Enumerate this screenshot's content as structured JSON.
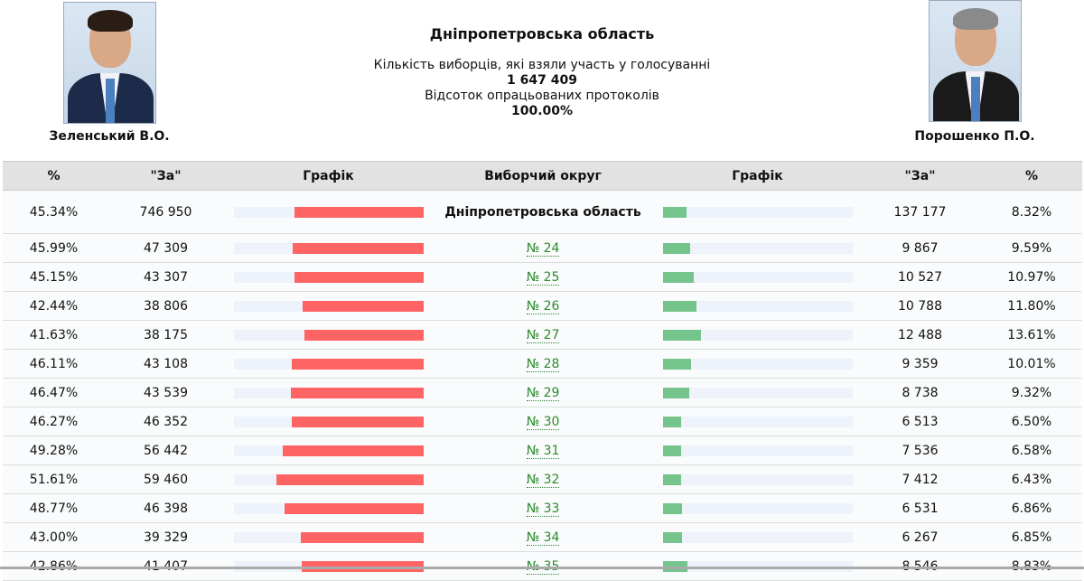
{
  "header": {
    "title": "Дніпропетровська область",
    "turnout_label": "Кількість виборців, які взяли участь у голосуванні",
    "turnout_value": "1 647 409",
    "protocols_label": "Відсоток опрацьованих протоколів",
    "protocols_value": "100.00%"
  },
  "candidates": {
    "left": {
      "name": "Зеленський В.О.",
      "color": "#fe6464"
    },
    "right": {
      "name": "Порошенко П.О.",
      "color": "#74c48c"
    }
  },
  "table": {
    "columns": [
      "%",
      "\"За\"",
      "Графік",
      "Виборчий округ",
      "Графік",
      "\"За\"",
      "%"
    ],
    "bar_scale_max_percent": 66.7,
    "rows": [
      {
        "l_pct": "45.34%",
        "l_votes": "746 950",
        "district": "Дніпропетровська область",
        "r_votes": "137 177",
        "r_pct": "8.32%",
        "l": 45.34,
        "r": 8.32,
        "total": true
      },
      {
        "l_pct": "45.99%",
        "l_votes": "47 309",
        "district": "№ 24",
        "r_votes": "9 867",
        "r_pct": "9.59%",
        "l": 45.99,
        "r": 9.59
      },
      {
        "l_pct": "45.15%",
        "l_votes": "43 307",
        "district": "№ 25",
        "r_votes": "10 527",
        "r_pct": "10.97%",
        "l": 45.15,
        "r": 10.97
      },
      {
        "l_pct": "42.44%",
        "l_votes": "38 806",
        "district": "№ 26",
        "r_votes": "10 788",
        "r_pct": "11.80%",
        "l": 42.44,
        "r": 11.8
      },
      {
        "l_pct": "41.63%",
        "l_votes": "38 175",
        "district": "№ 27",
        "r_votes": "12 488",
        "r_pct": "13.61%",
        "l": 41.63,
        "r": 13.61
      },
      {
        "l_pct": "46.11%",
        "l_votes": "43 108",
        "district": "№ 28",
        "r_votes": "9 359",
        "r_pct": "10.01%",
        "l": 46.11,
        "r": 10.01
      },
      {
        "l_pct": "46.47%",
        "l_votes": "43 539",
        "district": "№ 29",
        "r_votes": "8 738",
        "r_pct": "9.32%",
        "l": 46.47,
        "r": 9.32
      },
      {
        "l_pct": "46.27%",
        "l_votes": "46 352",
        "district": "№ 30",
        "r_votes": "6 513",
        "r_pct": "6.50%",
        "l": 46.27,
        "r": 6.5
      },
      {
        "l_pct": "49.28%",
        "l_votes": "56 442",
        "district": "№ 31",
        "r_votes": "7 536",
        "r_pct": "6.58%",
        "l": 49.28,
        "r": 6.58
      },
      {
        "l_pct": "51.61%",
        "l_votes": "59 460",
        "district": "№ 32",
        "r_votes": "7 412",
        "r_pct": "6.43%",
        "l": 51.61,
        "r": 6.43
      },
      {
        "l_pct": "48.77%",
        "l_votes": "46 398",
        "district": "№ 33",
        "r_votes": "6 531",
        "r_pct": "6.86%",
        "l": 48.77,
        "r": 6.86
      },
      {
        "l_pct": "43.00%",
        "l_votes": "39 329",
        "district": "№ 34",
        "r_votes": "6 267",
        "r_pct": "6.85%",
        "l": 43.0,
        "r": 6.85
      },
      {
        "l_pct": "42.86%",
        "l_votes": "41 407",
        "district": "№ 35",
        "r_votes": "8 546",
        "r_pct": "8.83%",
        "l": 42.86,
        "r": 8.83
      }
    ]
  }
}
